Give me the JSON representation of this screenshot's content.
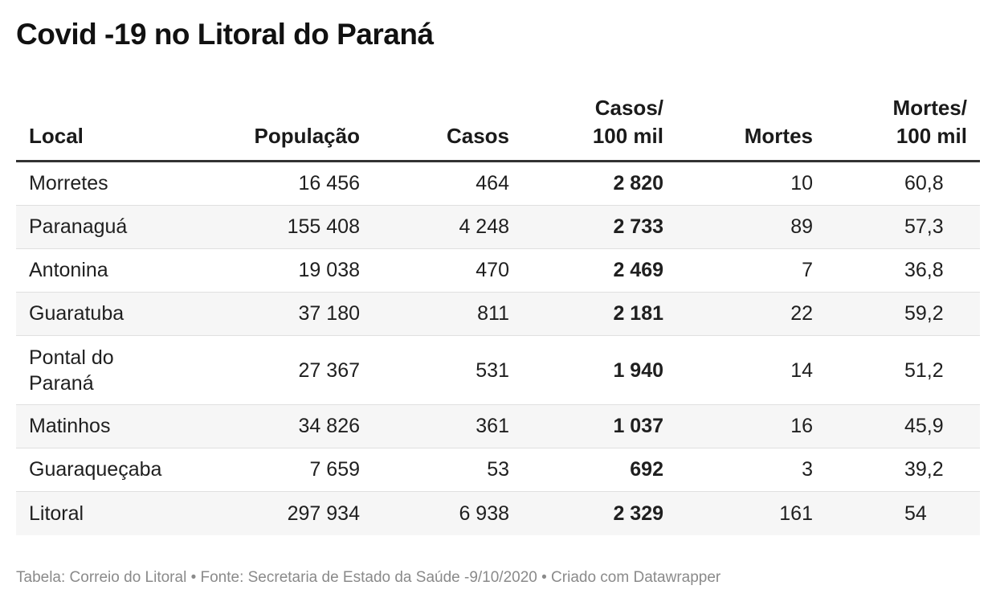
{
  "title": "Covid -19 no Litoral do Paraná",
  "chart_data": {
    "type": "table",
    "columns": [
      "Local",
      "População",
      "Casos",
      "Casos/\n100 mil",
      "Mortes",
      "Mortes/\n100 mil"
    ],
    "columns_display": [
      [
        "Local"
      ],
      [
        "População"
      ],
      [
        "Casos"
      ],
      [
        "Casos/",
        "100 mil"
      ],
      [
        "Mortes"
      ],
      [
        "Mortes/",
        "100 mil"
      ]
    ],
    "rows": [
      [
        [
          "Morretes"
        ],
        "16 456",
        "464",
        "2 820",
        "10",
        "60,8"
      ],
      [
        [
          "Paranaguá"
        ],
        "155 408",
        "4 248",
        "2 733",
        "89",
        "57,3"
      ],
      [
        [
          "Antonina"
        ],
        "19 038",
        "470",
        "2 469",
        "7",
        "36,8"
      ],
      [
        [
          "Guaratuba"
        ],
        "37 180",
        "811",
        "2 181",
        "22",
        "59,2"
      ],
      [
        [
          "Pontal do",
          "Paraná"
        ],
        "27 367",
        "531",
        "1 940",
        "14",
        "51,2"
      ],
      [
        [
          "Matinhos"
        ],
        "34 826",
        "361",
        "1 037",
        "16",
        "45,9"
      ],
      [
        [
          "Guaraqueçaba"
        ],
        "7 659",
        "53",
        "692",
        "3",
        "39,2"
      ],
      [
        [
          "Litoral"
        ],
        "297 934",
        "6 938",
        "2 329",
        "161",
        "54"
      ]
    ]
  },
  "footer": "Tabela: Correio do Litoral • Fonte: Secretaria de Estado da Saúde -9/10/2020 • Criado com Datawrapper"
}
